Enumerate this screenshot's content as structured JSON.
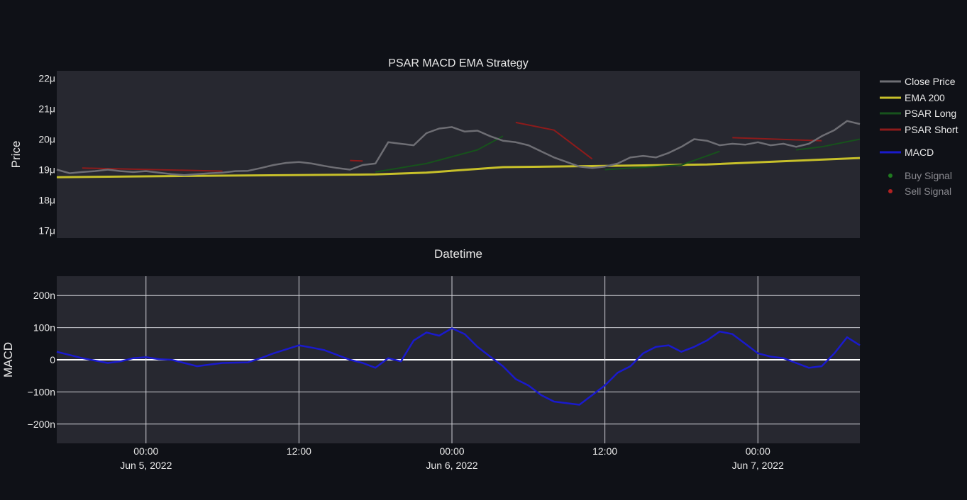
{
  "chart_data": [
    {
      "type": "line",
      "title": "PSAR MACD EMA Strategy",
      "xlabel": "Datetime",
      "ylabel": "Price",
      "xlim": [
        "2022-06-04T17:00",
        "2022-06-07T08:00"
      ],
      "ylim": [
        1.675e-05,
        2.225e-05
      ],
      "yticks": [
        {
          "value": 1.7e-05,
          "label": "17μ"
        },
        {
          "value": 1.8e-05,
          "label": "18μ"
        },
        {
          "value": 1.9e-05,
          "label": "19μ"
        },
        {
          "value": 2e-05,
          "label": "20μ"
        },
        {
          "value": 2.1e-05,
          "label": "21μ"
        },
        {
          "value": 2.2e-05,
          "label": "22μ"
        }
      ],
      "grid": false,
      "legend_position": "right",
      "series": [
        {
          "name": "Close Price",
          "color": "#6e6e74",
          "x": [
            "2022-06-04T17:00",
            "2022-06-04T18:00",
            "2022-06-04T19:00",
            "2022-06-04T20:00",
            "2022-06-04T21:00",
            "2022-06-04T22:00",
            "2022-06-04T23:00",
            "2022-06-05T00:00",
            "2022-06-05T01:00",
            "2022-06-05T02:00",
            "2022-06-05T03:00",
            "2022-06-05T04:00",
            "2022-06-05T05:00",
            "2022-06-05T06:00",
            "2022-06-05T07:00",
            "2022-06-05T08:00",
            "2022-06-05T09:00",
            "2022-06-05T10:00",
            "2022-06-05T11:00",
            "2022-06-05T12:00",
            "2022-06-05T13:00",
            "2022-06-05T14:00",
            "2022-06-05T15:00",
            "2022-06-05T16:00",
            "2022-06-05T17:00",
            "2022-06-05T18:00",
            "2022-06-05T19:00",
            "2022-06-05T20:00",
            "2022-06-05T21:00",
            "2022-06-05T22:00",
            "2022-06-05T23:00",
            "2022-06-06T00:00",
            "2022-06-06T01:00",
            "2022-06-06T02:00",
            "2022-06-06T03:00",
            "2022-06-06T04:00",
            "2022-06-06T05:00",
            "2022-06-06T06:00",
            "2022-06-06T07:00",
            "2022-06-06T08:00",
            "2022-06-06T09:00",
            "2022-06-06T10:00",
            "2022-06-06T11:00",
            "2022-06-06T12:00",
            "2022-06-06T13:00",
            "2022-06-06T14:00",
            "2022-06-06T15:00",
            "2022-06-06T16:00",
            "2022-06-06T17:00",
            "2022-06-06T18:00",
            "2022-06-06T19:00",
            "2022-06-06T20:00",
            "2022-06-06T21:00",
            "2022-06-06T22:00",
            "2022-06-06T23:00",
            "2022-06-07T00:00",
            "2022-06-07T01:00",
            "2022-06-07T02:00",
            "2022-06-07T03:00",
            "2022-06-07T04:00",
            "2022-06-07T05:00",
            "2022-06-07T06:00",
            "2022-06-07T07:00",
            "2022-06-07T08:00"
          ],
          "y": [
            1.9e-05,
            1.888e-05,
            1.892e-05,
            1.895e-05,
            1.9e-05,
            1.895e-05,
            1.892e-05,
            1.895e-05,
            1.89e-05,
            1.885e-05,
            1.882e-05,
            1.885e-05,
            1.888e-05,
            1.89e-05,
            1.895e-05,
            1.896e-05,
            1.905e-05,
            1.915e-05,
            1.922e-05,
            1.925e-05,
            1.92e-05,
            1.912e-05,
            1.905e-05,
            1.9e-05,
            1.915e-05,
            1.92e-05,
            1.99e-05,
            1.985e-05,
            1.98e-05,
            2.02e-05,
            2.035e-05,
            2.04e-05,
            2.025e-05,
            2.028e-05,
            2.01e-05,
            1.995e-05,
            1.99e-05,
            1.98e-05,
            1.96e-05,
            1.94e-05,
            1.925e-05,
            1.91e-05,
            1.905e-05,
            1.91e-05,
            1.92e-05,
            1.94e-05,
            1.945e-05,
            1.94e-05,
            1.955e-05,
            1.975e-05,
            2e-05,
            1.995e-05,
            1.98e-05,
            1.985e-05,
            1.982e-05,
            1.99e-05,
            1.98e-05,
            1.985e-05,
            1.975e-05,
            1.985e-05,
            2.01e-05,
            2.03e-05,
            2.06e-05,
            2.05e-05
          ]
        },
        {
          "name": "EMA 200",
          "color": "#c7c02a",
          "x": [
            "2022-06-04T17:00",
            "2022-06-05T06:00",
            "2022-06-05T18:00",
            "2022-06-05T22:00",
            "2022-06-06T04:00",
            "2022-06-06T12:00",
            "2022-06-06T20:00",
            "2022-06-07T08:00"
          ],
          "y": [
            1.875e-05,
            1.88e-05,
            1.884e-05,
            1.89e-05,
            1.908e-05,
            1.912e-05,
            1.917e-05,
            1.938e-05
          ]
        },
        {
          "name": "PSAR Long",
          "color": "#17521c",
          "segments": [
            {
              "x": [
                "2022-06-05T18:00",
                "2022-06-05T22:00",
                "2022-06-06T02:00",
                "2022-06-06T04:00"
              ],
              "y": [
                1.892e-05,
                1.92e-05,
                1.965e-05,
                2.01e-05
              ]
            },
            {
              "x": [
                "2022-06-06T12:00",
                "2022-06-06T18:00",
                "2022-06-06T21:00"
              ],
              "y": [
                1.9e-05,
                1.915e-05,
                1.96e-05
              ]
            },
            {
              "x": [
                "2022-06-07T03:00",
                "2022-06-07T05:00",
                "2022-06-07T08:00"
              ],
              "y": [
                1.965e-05,
                1.975e-05,
                2e-05
              ]
            }
          ]
        },
        {
          "name": "PSAR Short",
          "color": "#8e1b1b",
          "segments": [
            {
              "x": [
                "2022-06-04T19:00",
                "2022-06-05T06:00"
              ],
              "y": [
                1.905e-05,
                1.895e-05
              ]
            },
            {
              "x": [
                "2022-06-05T16:00",
                "2022-06-05T17:00"
              ],
              "y": [
                1.93e-05,
                1.928e-05
              ]
            },
            {
              "x": [
                "2022-06-06T05:00",
                "2022-06-06T08:00",
                "2022-06-06T11:00"
              ],
              "y": [
                2.055e-05,
                2.03e-05,
                1.935e-05
              ]
            },
            {
              "x": [
                "2022-06-06T22:00",
                "2022-06-07T05:00"
              ],
              "y": [
                2.005e-05,
                1.995e-05
              ]
            }
          ]
        },
        {
          "name": "Buy Signal",
          "color": "#1f7a1f",
          "x": [],
          "y": []
        },
        {
          "name": "Sell Signal",
          "color": "#b22222",
          "x": [],
          "y": []
        }
      ]
    },
    {
      "type": "line",
      "title": "",
      "xlabel": "",
      "ylabel": "MACD",
      "xlim": [
        "2022-06-04T17:00",
        "2022-06-07T08:00"
      ],
      "ylim": [
        -2.6e-07,
        2.6e-07
      ],
      "yticks": [
        {
          "value": 2e-07,
          "label": "200n"
        },
        {
          "value": 1e-07,
          "label": "100n"
        },
        {
          "value": 0,
          "label": "0"
        },
        {
          "value": -1e-07,
          "label": "−100n"
        },
        {
          "value": -2e-07,
          "label": "−200n"
        }
      ],
      "xticks": [
        {
          "value": "2022-06-05T00:00",
          "label": "00:00",
          "sublabel": "Jun 5, 2022"
        },
        {
          "value": "2022-06-05T12:00",
          "label": "12:00",
          "sublabel": ""
        },
        {
          "value": "2022-06-06T00:00",
          "label": "00:00",
          "sublabel": "Jun 6, 2022"
        },
        {
          "value": "2022-06-06T12:00",
          "label": "12:00",
          "sublabel": ""
        },
        {
          "value": "2022-06-07T00:00",
          "label": "00:00",
          "sublabel": "Jun 7, 2022"
        }
      ],
      "grid": true,
      "series": [
        {
          "name": "MACD",
          "color": "#1a1acc",
          "x": [
            "2022-06-04T17:00",
            "2022-06-04T19:00",
            "2022-06-04T21:00",
            "2022-06-04T22:00",
            "2022-06-04T23:00",
            "2022-06-05T00:00",
            "2022-06-05T01:00",
            "2022-06-05T02:00",
            "2022-06-05T03:00",
            "2022-06-05T04:00",
            "2022-06-05T05:00",
            "2022-06-05T06:00",
            "2022-06-05T08:00",
            "2022-06-05T09:00",
            "2022-06-05T10:00",
            "2022-06-05T12:00",
            "2022-06-05T13:00",
            "2022-06-05T14:00",
            "2022-06-05T15:00",
            "2022-06-05T16:00",
            "2022-06-05T17:00",
            "2022-06-05T18:00",
            "2022-06-05T19:00",
            "2022-06-05T20:00",
            "2022-06-05T21:00",
            "2022-06-05T22:00",
            "2022-06-05T23:00",
            "2022-06-06T00:00",
            "2022-06-06T01:00",
            "2022-06-06T02:00",
            "2022-06-06T03:00",
            "2022-06-06T04:00",
            "2022-06-06T05:00",
            "2022-06-06T06:00",
            "2022-06-06T07:00",
            "2022-06-06T08:00",
            "2022-06-06T09:00",
            "2022-06-06T10:00",
            "2022-06-06T11:00",
            "2022-06-06T12:00",
            "2022-06-06T13:00",
            "2022-06-06T14:00",
            "2022-06-06T15:00",
            "2022-06-06T16:00",
            "2022-06-06T17:00",
            "2022-06-06T18:00",
            "2022-06-06T19:00",
            "2022-06-06T20:00",
            "2022-06-06T21:00",
            "2022-06-06T22:00",
            "2022-06-06T23:00",
            "2022-06-07T00:00",
            "2022-06-07T01:00",
            "2022-06-07T02:00",
            "2022-06-07T03:00",
            "2022-06-07T04:00",
            "2022-06-07T05:00",
            "2022-06-07T06:00",
            "2022-06-07T07:00",
            "2022-06-07T08:00"
          ],
          "y": [
            2.5e-08,
            5e-09,
            -1e-08,
            -5e-09,
            5e-09,
            8e-09,
            2e-09,
            0,
            -1e-08,
            -2e-08,
            -1.5e-08,
            -1e-08,
            -8e-09,
            5e-09,
            2e-08,
            4.5e-08,
            3.8e-08,
            3e-08,
            1.5e-08,
            0,
            -1e-08,
            -2.5e-08,
            5e-09,
            -5e-09,
            6e-08,
            8.5e-08,
            7.5e-08,
            9.8e-08,
            8e-08,
            4e-08,
            1e-08,
            -2e-08,
            -6e-08,
            -8e-08,
            -1.1e-07,
            -1.3e-07,
            -1.35e-07,
            -1.4e-07,
            -1.1e-07,
            -8e-08,
            -4e-08,
            -2e-08,
            2e-08,
            4e-08,
            4.5e-08,
            2.5e-08,
            4e-08,
            6e-08,
            8.8e-08,
            8e-08,
            5e-08,
            2e-08,
            1e-08,
            5e-09,
            -1e-08,
            -2.5e-08,
            -2e-08,
            2e-08,
            7e-08,
            4.5e-08
          ]
        }
      ]
    }
  ]
}
